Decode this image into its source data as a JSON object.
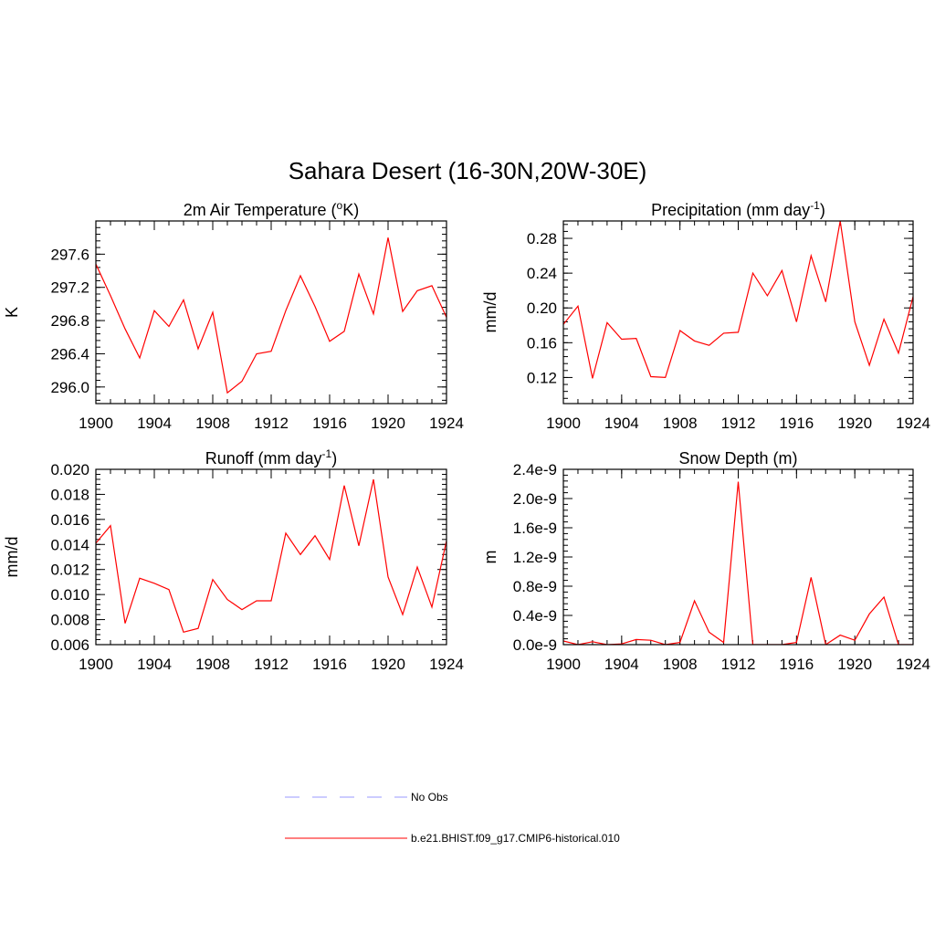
{
  "title": "Sahara Desert (16-30N,20W-30E)",
  "legend": [
    {
      "label": "No Obs",
      "color": "#9999ff",
      "dash": true
    },
    {
      "label": "b.e21.BHIST.f09_g17.CMIP6-historical.010",
      "color": "#ff0000",
      "dash": false
    }
  ],
  "chart_data": [
    {
      "type": "line",
      "title_main": "2m Air Temperature (",
      "title_sup": "o",
      "title_tail": "K)",
      "ylabel": "K",
      "xlim": [
        1900,
        1924
      ],
      "ylim": [
        295.8,
        298.0
      ],
      "yticks": [
        296.0,
        296.4,
        296.8,
        297.2,
        297.6
      ],
      "ytick_labels": [
        "296.0",
        "296.4",
        "296.8",
        "297.2",
        "297.6"
      ],
      "xticks": [
        1900,
        1904,
        1908,
        1912,
        1916,
        1920,
        1924
      ],
      "xtick_labels": [
        "1900",
        "1904",
        "1908",
        "1912",
        "1916",
        "1920",
        "1924"
      ],
      "color": "#ff0000",
      "x": [
        1900,
        1901,
        1902,
        1903,
        1904,
        1905,
        1906,
        1907,
        1908,
        1909,
        1910,
        1911,
        1912,
        1913,
        1914,
        1915,
        1916,
        1917,
        1918,
        1919,
        1920,
        1921,
        1922,
        1923,
        1924
      ],
      "values": [
        297.48,
        297.1,
        296.7,
        296.35,
        296.92,
        296.73,
        297.05,
        296.46,
        296.9,
        295.93,
        296.07,
        296.4,
        296.43,
        296.92,
        297.34,
        296.97,
        296.55,
        296.67,
        297.36,
        296.88,
        297.8,
        296.91,
        297.16,
        297.22,
        296.84
      ]
    },
    {
      "type": "line",
      "title_main": "Precipitation (mm day",
      "title_sup": "-1",
      "title_tail": ")",
      "ylabel": "mm/d",
      "xlim": [
        1900,
        1924
      ],
      "ylim": [
        0.09,
        0.3
      ],
      "yticks": [
        0.12,
        0.16,
        0.2,
        0.24,
        0.28
      ],
      "ytick_labels": [
        "0.12",
        "0.16",
        "0.20",
        "0.24",
        "0.28"
      ],
      "xticks": [
        1900,
        1904,
        1908,
        1912,
        1916,
        1920,
        1924
      ],
      "xtick_labels": [
        "1900",
        "1904",
        "1908",
        "1912",
        "1916",
        "1920",
        "1924"
      ],
      "color": "#ff0000",
      "x": [
        1900,
        1901,
        1902,
        1903,
        1904,
        1905,
        1906,
        1907,
        1908,
        1909,
        1910,
        1911,
        1912,
        1913,
        1914,
        1915,
        1916,
        1917,
        1918,
        1919,
        1920,
        1921,
        1922,
        1923,
        1924
      ],
      "values": [
        0.181,
        0.202,
        0.119,
        0.183,
        0.164,
        0.165,
        0.121,
        0.12,
        0.174,
        0.162,
        0.157,
        0.171,
        0.172,
        0.24,
        0.214,
        0.243,
        0.184,
        0.26,
        0.207,
        0.3,
        0.184,
        0.134,
        0.187,
        0.148,
        0.213
      ]
    },
    {
      "type": "line",
      "title_main": "Runoff (mm day",
      "title_sup": "-1",
      "title_tail": ")",
      "ylabel": "mm/d",
      "xlim": [
        1900,
        1924
      ],
      "ylim": [
        0.006,
        0.02
      ],
      "yticks": [
        0.006,
        0.008,
        0.01,
        0.012,
        0.014,
        0.016,
        0.018,
        0.02
      ],
      "ytick_labels": [
        "0.006",
        "0.008",
        "0.010",
        "0.012",
        "0.014",
        "0.016",
        "0.018",
        "0.020"
      ],
      "xticks": [
        1900,
        1904,
        1908,
        1912,
        1916,
        1920,
        1924
      ],
      "xtick_labels": [
        "1900",
        "1904",
        "1908",
        "1912",
        "1916",
        "1920",
        "1924"
      ],
      "color": "#ff0000",
      "x": [
        1900,
        1901,
        1902,
        1903,
        1904,
        1905,
        1906,
        1907,
        1908,
        1909,
        1910,
        1911,
        1912,
        1913,
        1914,
        1915,
        1916,
        1917,
        1918,
        1919,
        1920,
        1921,
        1922,
        1923,
        1924
      ],
      "values": [
        0.0141,
        0.0155,
        0.0077,
        0.0113,
        0.0109,
        0.0104,
        0.007,
        0.0073,
        0.0112,
        0.0096,
        0.0088,
        0.0095,
        0.0095,
        0.0149,
        0.0132,
        0.0147,
        0.0128,
        0.0187,
        0.0139,
        0.0192,
        0.0114,
        0.0084,
        0.0122,
        0.009,
        0.0143
      ]
    },
    {
      "type": "line",
      "title_main": "Snow Depth (m)",
      "title_sup": "",
      "title_tail": "",
      "ylabel": "m",
      "xlim": [
        1900,
        1924
      ],
      "ylim": [
        0.0,
        2.4e-09
      ],
      "yticks": [
        0.0,
        4e-10,
        8e-10,
        1.2e-09,
        1.6e-09,
        2e-09,
        2.4e-09
      ],
      "ytick_labels": [
        "0.0e-9",
        "0.4e-9",
        "0.8e-9",
        "1.2e-9",
        "1.6e-9",
        "2.0e-9",
        "2.4e-9"
      ],
      "xticks": [
        1900,
        1904,
        1908,
        1912,
        1916,
        1920,
        1924
      ],
      "xtick_labels": [
        "1900",
        "1904",
        "1908",
        "1912",
        "1916",
        "1920",
        "1924"
      ],
      "color": "#ff0000",
      "x": [
        1900,
        1901,
        1902,
        1903,
        1904,
        1905,
        1906,
        1907,
        1908,
        1909,
        1910,
        1911,
        1912,
        1913,
        1914,
        1915,
        1916,
        1917,
        1918,
        1919,
        1920,
        1921,
        1922,
        1923,
        1924
      ],
      "values": [
        5e-11,
        0.0,
        4e-11,
        0.0,
        1e-11,
        7e-11,
        6e-11,
        0.0,
        3e-11,
        6e-10,
        1.7e-10,
        3e-11,
        2.23e-09,
        0.0,
        0.0,
        0.0,
        3e-11,
        9.2e-10,
        0.0,
        1.3e-10,
        6e-11,
        4.2e-10,
        6.5e-10,
        0.0,
        0.0
      ]
    }
  ]
}
